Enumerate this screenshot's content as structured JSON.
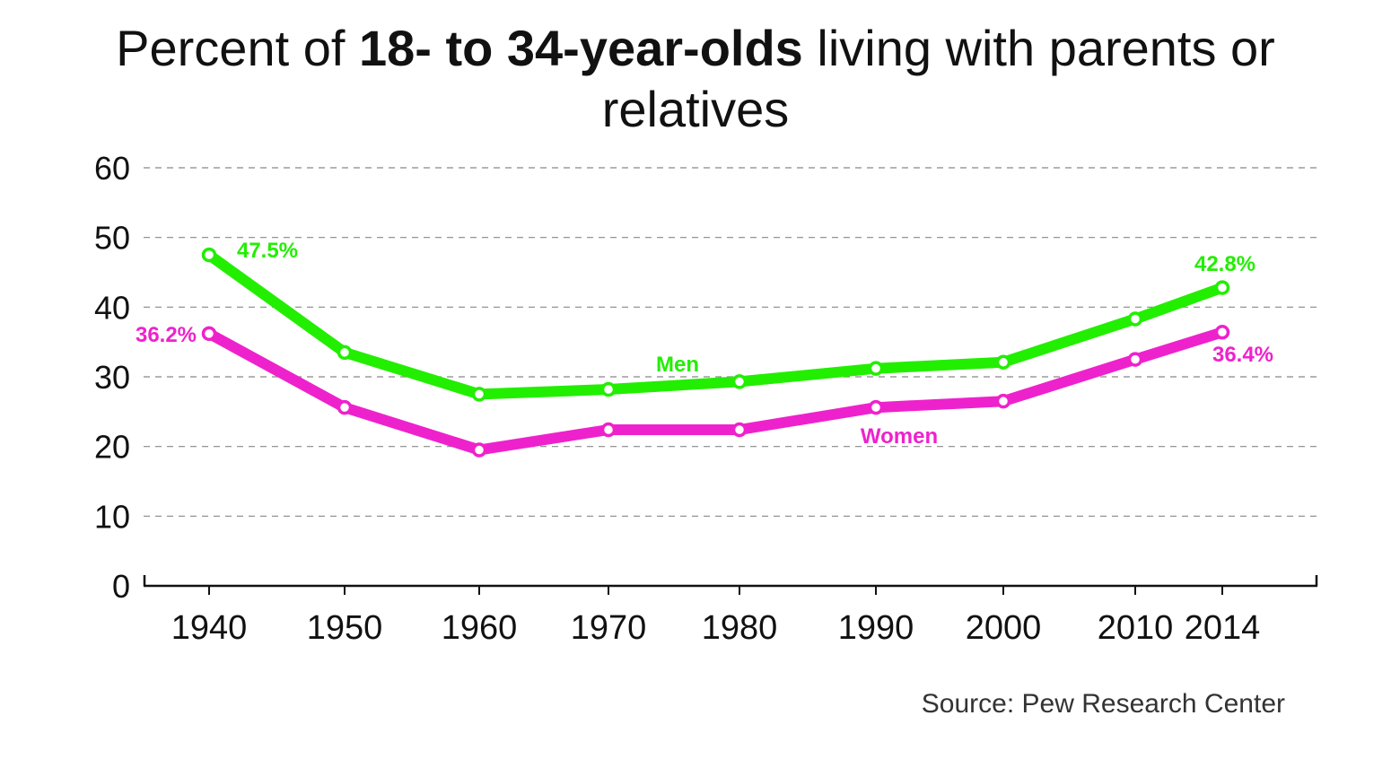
{
  "title": {
    "pre": "Percent of ",
    "bold": "18- to 34-year-olds",
    "line1_post": " living with parents or",
    "line2": "relatives"
  },
  "source": "Source: Pew Research Center",
  "colors": {
    "men": "#22ee00",
    "women": "#ee22cc",
    "grid": "#888888",
    "axis": "#111111"
  },
  "chart_data": {
    "type": "line",
    "title": "Percent of 18- to 34-year-olds living with parents or relatives",
    "xlabel": "",
    "ylabel": "",
    "ylim": [
      0,
      60
    ],
    "yticks": [
      0,
      10,
      20,
      30,
      40,
      50,
      60
    ],
    "x": [
      "1940",
      "1950",
      "1960",
      "1970",
      "1980",
      "1990",
      "2000",
      "2010",
      "2014"
    ],
    "grid": "horizontal dashed",
    "series": [
      {
        "name": "Men",
        "values": [
          47.5,
          33.5,
          27.5,
          28.2,
          29.3,
          31.2,
          32.1,
          38.3,
          42.8
        ]
      },
      {
        "name": "Women",
        "values": [
          36.2,
          25.6,
          19.5,
          22.4,
          22.4,
          25.6,
          26.5,
          32.5,
          36.4
        ]
      }
    ],
    "annotations": [
      {
        "series": "Men",
        "point": "1940",
        "text": "47.5%"
      },
      {
        "series": "Men",
        "point": "2014",
        "text": "42.8%"
      },
      {
        "series": "Women",
        "point": "1940",
        "text": "36.2%"
      },
      {
        "series": "Women",
        "point": "2014",
        "text": "36.4%"
      }
    ]
  }
}
